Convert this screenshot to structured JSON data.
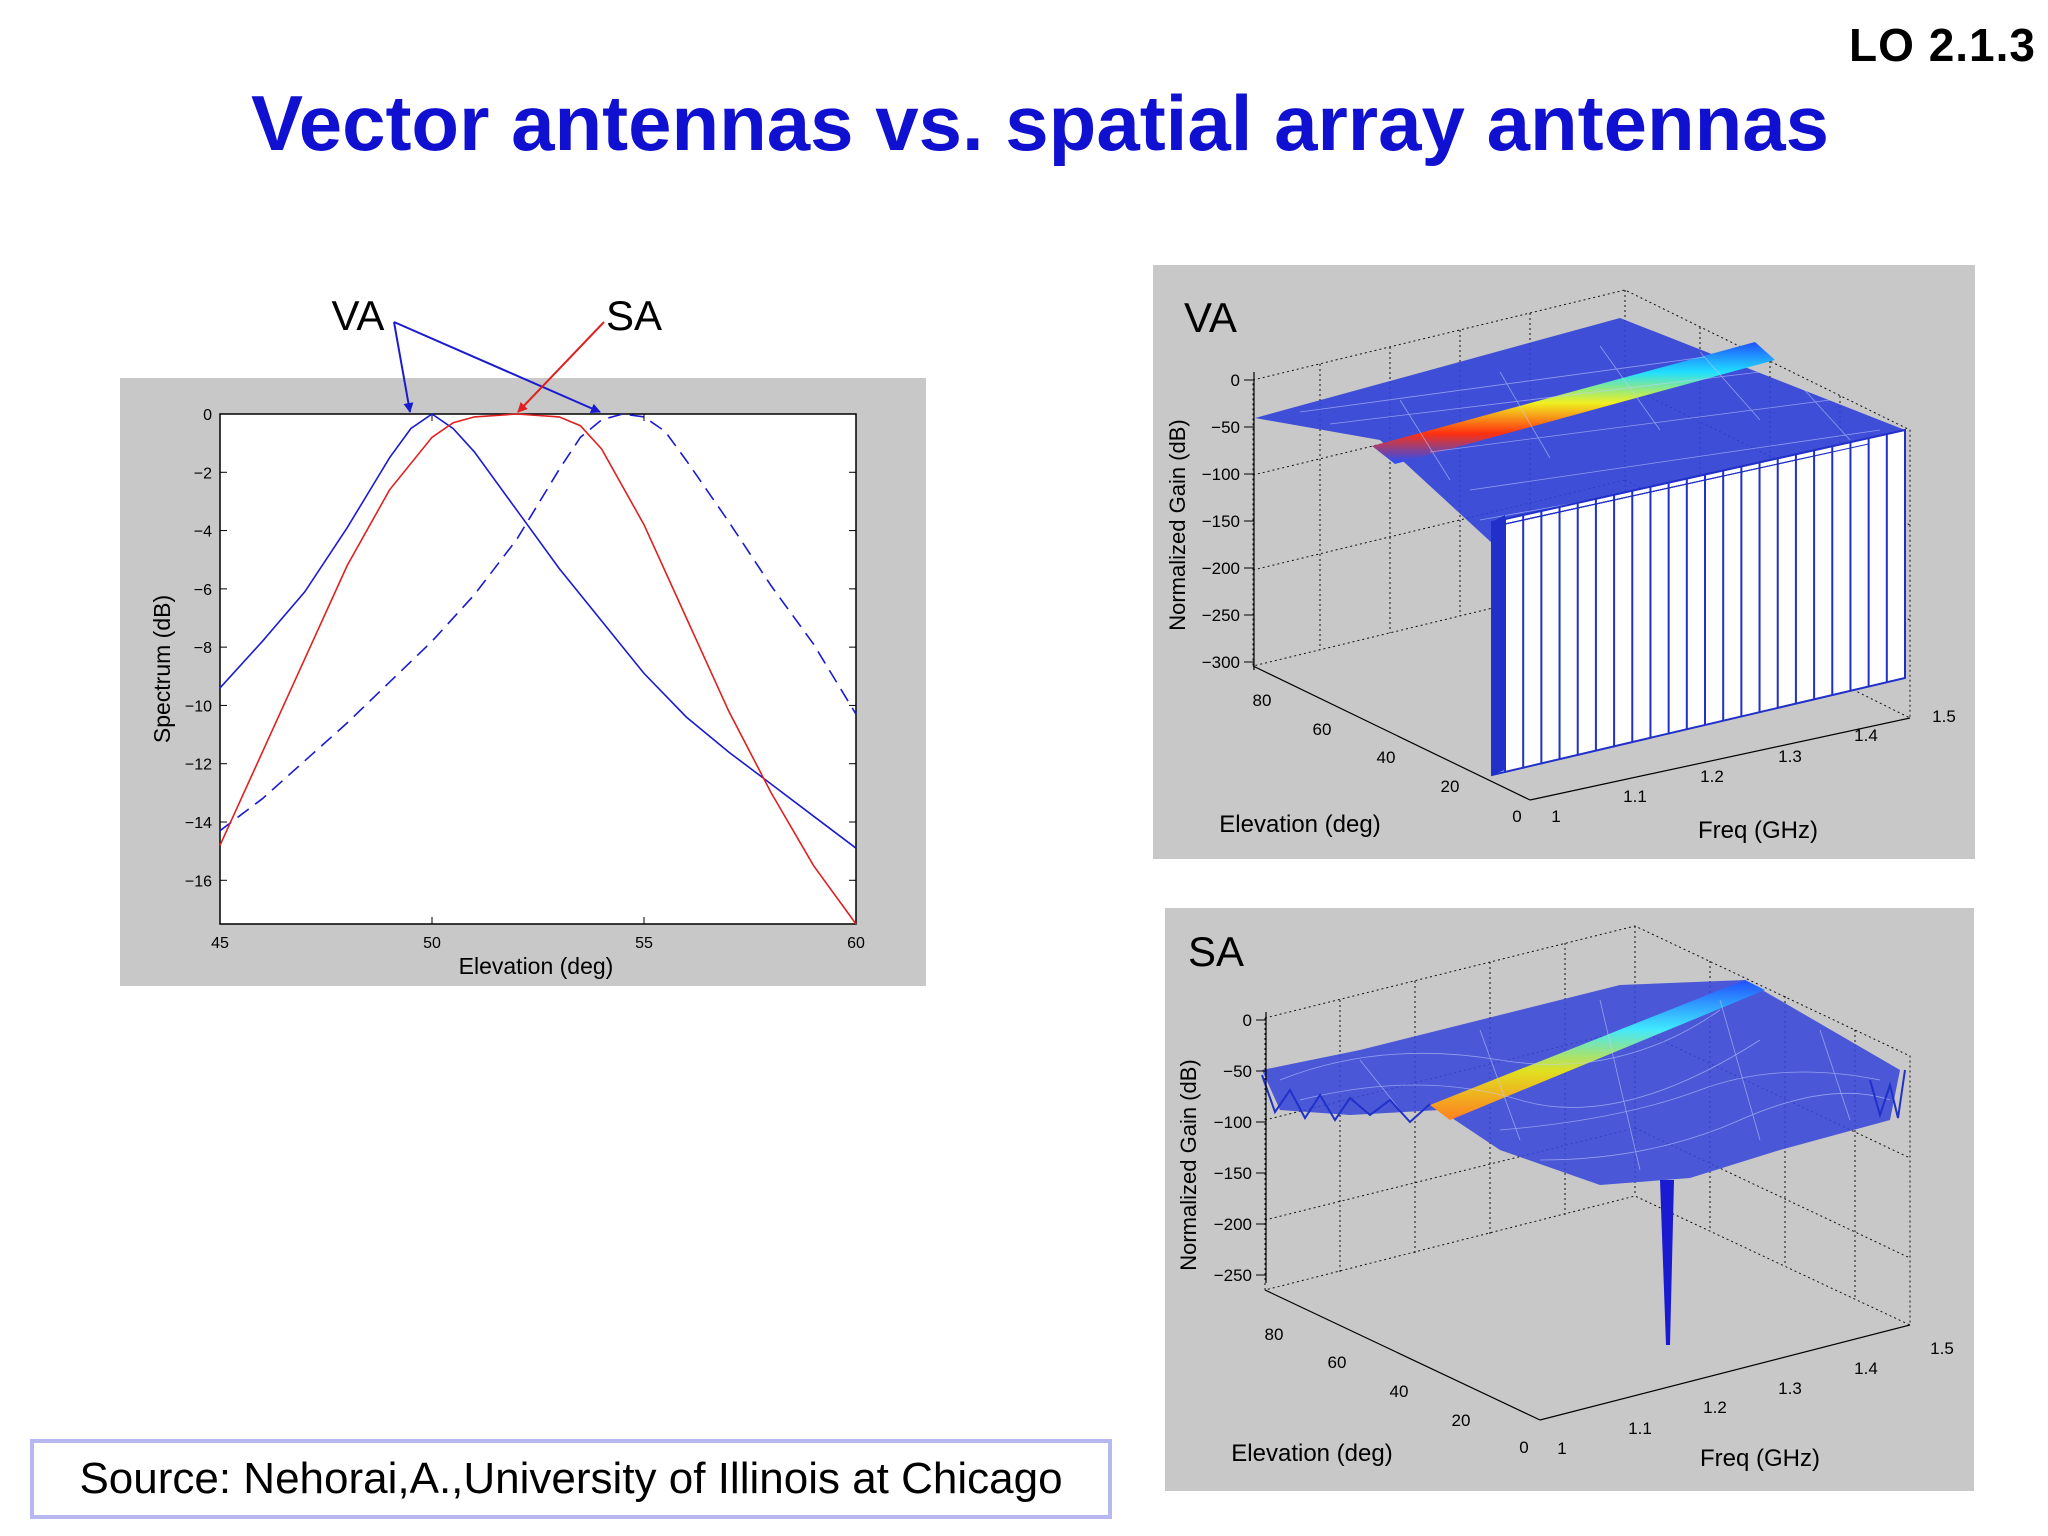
{
  "header": {
    "lo_label": "LO  2.1.3",
    "title": "Vector antennas vs. spatial array antennas"
  },
  "footer": {
    "source": "Source: Nehorai,A.,University of Illinois at Chicago"
  },
  "colors": {
    "title": "#1010d0",
    "va": "#1a1ad0",
    "sa": "#e02020",
    "panel": "#c8c8c8"
  },
  "chart_data": [
    {
      "type": "line",
      "title": "",
      "xlabel": "Elevation (deg)",
      "ylabel": "Spectrum (dB)",
      "xlim": [
        45,
        60
      ],
      "ylim": [
        -17.5,
        0
      ],
      "xticks": [
        45,
        50,
        55,
        60
      ],
      "yticks": [
        0,
        -2,
        -4,
        -6,
        -8,
        -10,
        -12,
        -14,
        -16
      ],
      "annotations": [
        "VA",
        "SA"
      ],
      "series": [
        {
          "name": "VA",
          "style": "solid",
          "color": "#1a1ad0",
          "x": [
            45,
            46,
            47,
            48,
            49,
            49.5,
            50,
            50.5,
            51,
            52,
            53,
            54,
            55,
            56,
            57,
            58,
            59,
            60
          ],
          "y": [
            -9.4,
            -7.8,
            -6.1,
            -3.9,
            -1.5,
            -0.5,
            0,
            -0.5,
            -1.3,
            -3.3,
            -5.3,
            -7.1,
            -8.9,
            -10.4,
            -11.6,
            -12.7,
            -13.8,
            -14.9
          ]
        },
        {
          "name": "",
          "style": "dashed",
          "color": "#1a1ad0",
          "x": [
            45,
            46,
            47,
            48,
            49,
            50,
            51,
            52,
            53,
            53.5,
            54,
            54.5,
            55,
            55.5,
            56,
            57,
            58,
            59,
            60
          ],
          "y": [
            -14.3,
            -13.2,
            -11.9,
            -10.6,
            -9.2,
            -7.8,
            -6.2,
            -4.3,
            -1.9,
            -0.8,
            -0.2,
            0,
            -0.1,
            -0.6,
            -1.6,
            -3.7,
            -5.9,
            -7.9,
            -10.3
          ]
        },
        {
          "name": "SA",
          "style": "solid",
          "color": "#e02020",
          "x": [
            45,
            46,
            47,
            48,
            49,
            50,
            50.5,
            51,
            52,
            53,
            53.5,
            54,
            55,
            56,
            57,
            58,
            59,
            60
          ],
          "y": [
            -14.8,
            -11.6,
            -8.4,
            -5.2,
            -2.6,
            -0.8,
            -0.3,
            -0.1,
            0,
            -0.1,
            -0.4,
            -1.2,
            -3.8,
            -7.0,
            -10.2,
            -13.0,
            -15.5,
            -17.5
          ]
        }
      ]
    },
    {
      "type": "surface",
      "label": "VA",
      "zlabel": "Normalized Gain (dB)",
      "xlabel": "Elevation (deg)",
      "ylabel": "Freq (GHz)",
      "zticks": [
        0,
        -50,
        -100,
        -150,
        -200,
        -250,
        -300
      ],
      "xticks": [
        80,
        60,
        40,
        20,
        0
      ],
      "yticks": [
        1,
        1.1,
        1.2,
        1.3,
        1.4,
        1.5
      ]
    },
    {
      "type": "surface",
      "label": "SA",
      "zlabel": "Normalized Gain (dB)",
      "xlabel": "Elevation (deg)",
      "ylabel": "Freq (GHz)",
      "zticks": [
        0,
        -50,
        -100,
        -150,
        -200,
        -250
      ],
      "xticks": [
        80,
        60,
        40,
        20,
        0
      ],
      "yticks": [
        1,
        1.1,
        1.2,
        1.3,
        1.4,
        1.5
      ]
    }
  ]
}
